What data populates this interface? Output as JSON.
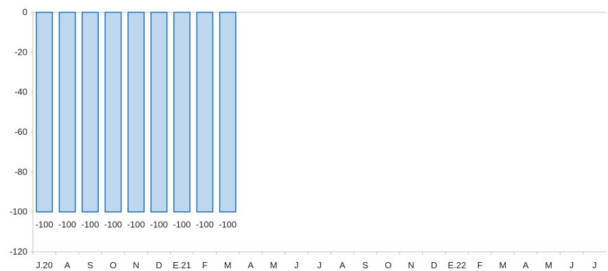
{
  "chart_data": {
    "type": "bar",
    "categories": [
      "J.20",
      "A",
      "S",
      "O",
      "N",
      "D",
      "E.21",
      "F",
      "M",
      "A",
      "M",
      "J",
      "J",
      "A",
      "S",
      "O",
      "N",
      "D",
      "E.22",
      "F",
      "M",
      "A",
      "M",
      "J",
      "J"
    ],
    "series": [
      {
        "values": [
          -100,
          -100,
          -100,
          -100,
          -100,
          -100,
          -100,
          -100,
          -100,
          null,
          null,
          null,
          null,
          null,
          null,
          null,
          null,
          null,
          null,
          null,
          null,
          null,
          null,
          null,
          null
        ],
        "data_labels": [
          "-100",
          "-100",
          "-100",
          "-100",
          "-100",
          "-100",
          "-100",
          "-100",
          "-100"
        ]
      }
    ],
    "title": "",
    "xlabel": "",
    "ylabel": "",
    "ylim": [
      -120,
      0
    ],
    "yticks": [
      0,
      -20,
      -40,
      -60,
      -80,
      -100,
      -120
    ],
    "ytick_labels": [
      "0",
      "-20",
      "-40",
      "-60",
      "-80",
      "-100",
      "-120"
    ],
    "grid": false,
    "colors": {
      "bar_fill": "#bdd7ee",
      "bar_stroke": "#1f6eb5",
      "axis": "#bfbfbf"
    }
  }
}
